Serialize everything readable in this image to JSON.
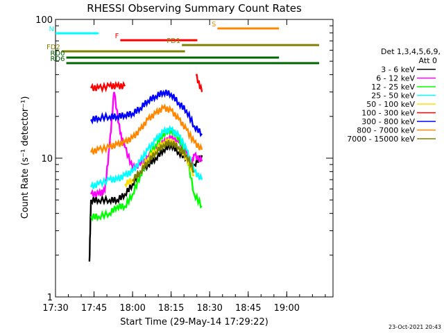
{
  "chart_data": {
    "type": "line",
    "title": "RHESSI Observing Summary Count Rates",
    "xlabel": "Start Time (29-May-14 17:29:22)",
    "ylabel": "Count Rate (s⁻¹ detector⁻¹)",
    "x_range_minutes": [
      17.5,
      19.3
    ],
    "x_ticks": [
      {
        "label": "17:30",
        "value": 17.5
      },
      {
        "label": "17:45",
        "value": 17.75
      },
      {
        "label": "18:00",
        "value": 18.0
      },
      {
        "label": "18:15",
        "value": 18.25
      },
      {
        "label": "18:30",
        "value": 18.5
      },
      {
        "label": "18:45",
        "value": 18.75
      },
      {
        "label": "19:00",
        "value": 19.0
      }
    ],
    "y_scale": "log",
    "ylim": [
      1,
      100
    ],
    "y_ticks": [
      {
        "label": "1",
        "value": 1
      },
      {
        "label": "10",
        "value": 10
      },
      {
        "label": "100",
        "value": 100
      }
    ],
    "legend_title": "Det 1,3,4,5,6,9,",
    "legend_subtitle": "Att 0",
    "legend_position": "right",
    "timestamp": "23-Oct-2021 20:43",
    "series": [
      {
        "name": "3 - 6 keV",
        "color": "#000000",
        "x": [
          17.72,
          17.73,
          17.78,
          17.85,
          17.9,
          17.95,
          18.0,
          18.05,
          18.1,
          18.15,
          18.2,
          18.25,
          18.3,
          18.35,
          18.4,
          18.45
        ],
        "y": [
          1.8,
          5.0,
          5.0,
          5.0,
          5.0,
          5.5,
          6.5,
          8.0,
          9.0,
          10.0,
          11.5,
          12.5,
          11.0,
          10.0,
          9.0,
          10.5
        ]
      },
      {
        "name": "6 - 12 keV",
        "color": "#ff00ff",
        "x": [
          17.73,
          17.78,
          17.82,
          17.85,
          17.88,
          17.92,
          17.95,
          18.0,
          18.05,
          18.1,
          18.15,
          18.2,
          18.25,
          18.3,
          18.35,
          18.38,
          18.4,
          18.45
        ],
        "y": [
          5.5,
          5.5,
          5.8,
          12.0,
          30.0,
          15.0,
          12.0,
          8.5,
          9.0,
          10.0,
          11.5,
          13.0,
          14.0,
          13.0,
          11.0,
          9.0,
          10.5,
          9.5
        ]
      },
      {
        "name": "12 - 25 keV",
        "color": "#00ff00",
        "x": [
          17.73,
          17.78,
          17.85,
          17.9,
          17.95,
          18.0,
          18.05,
          18.1,
          18.15,
          18.2,
          18.25,
          18.3,
          18.35,
          18.4,
          18.45
        ],
        "y": [
          3.8,
          3.8,
          4.0,
          4.5,
          4.5,
          5.5,
          7.5,
          10.0,
          12.5,
          15.0,
          16.0,
          14.0,
          10.5,
          5.5,
          4.5
        ]
      },
      {
        "name": "25 - 50 keV",
        "color": "#00ffff",
        "x": [
          17.73,
          17.78,
          17.85,
          17.9,
          17.95,
          18.0,
          18.05,
          18.1,
          18.15,
          18.2,
          18.25,
          18.3,
          18.35,
          18.4,
          18.45
        ],
        "y": [
          6.2,
          6.5,
          7.0,
          7.0,
          7.5,
          8.0,
          9.5,
          11.5,
          13.5,
          15.5,
          16.0,
          14.5,
          11.5,
          8.0,
          7.0
        ]
      },
      {
        "name": "50 - 100 keV",
        "color": "#ffdd00",
        "x": [
          17.95,
          18.0,
          18.05,
          18.1,
          18.15,
          18.2,
          18.25,
          18.3,
          18.35,
          18.4
        ],
        "y": [
          6.5,
          7.0,
          8.0,
          10.0,
          11.5,
          13.0,
          13.5,
          12.0,
          10.0,
          7.5
        ]
      },
      {
        "name": "100 - 300 keV",
        "color": "#ff0000",
        "x": [
          17.73,
          17.78,
          17.85,
          17.9,
          17.95,
          17.96,
          18.4,
          18.41,
          18.45
        ],
        "y": [
          32.0,
          32.0,
          33.0,
          33.0,
          33.0,
          null,
          null,
          40.0,
          30.0
        ]
      },
      {
        "name": "300 - 800 keV",
        "color": "#0000ff",
        "x": [
          17.73,
          17.78,
          17.85,
          17.9,
          17.95,
          18.0,
          18.05,
          18.1,
          18.15,
          18.2,
          18.25,
          18.3,
          18.35,
          18.4,
          18.45
        ],
        "y": [
          19.0,
          19.5,
          20.0,
          20.0,
          20.5,
          21.0,
          23.0,
          26.0,
          28.0,
          30.0,
          29.0,
          25.0,
          22.0,
          17.0,
          15.0
        ]
      },
      {
        "name": "800 - 7000 keV",
        "color": "#ff8800",
        "x": [
          17.73,
          17.78,
          17.85,
          17.9,
          17.95,
          18.0,
          18.05,
          18.1,
          18.15,
          18.2,
          18.25,
          18.3,
          18.35,
          18.4,
          18.45
        ],
        "y": [
          11.0,
          11.5,
          12.0,
          12.5,
          13.0,
          14.0,
          16.0,
          19.0,
          21.0,
          23.0,
          22.0,
          19.0,
          16.0,
          13.0,
          11.5
        ]
      },
      {
        "name": "7000 - 15000 keV",
        "color": "#808000",
        "x": [
          18.0,
          18.05,
          18.1,
          18.15,
          18.2,
          18.25,
          18.3,
          18.35,
          18.4
        ],
        "y": [
          7.0,
          8.0,
          9.5,
          11.0,
          12.5,
          13.0,
          12.0,
          10.5,
          8.0
        ]
      }
    ],
    "annotations": [
      {
        "label": "N",
        "color": "#00ffff",
        "x": [
          17.5,
          17.78
        ]
      },
      {
        "label": "F",
        "color": "#ff0000",
        "x": [
          17.92,
          18.42
        ]
      },
      {
        "label": "S",
        "color": "#ff8800",
        "x": [
          18.55,
          18.95
        ]
      },
      {
        "label": "FD1",
        "color": "#808000",
        "x": [
          18.32,
          19.28
        ]
      },
      {
        "label": "FD2",
        "color": "#808000",
        "x": [
          17.54,
          18.34
        ]
      },
      {
        "label": "RD0",
        "color": "#006600",
        "x": [
          17.57,
          18.95
        ]
      },
      {
        "label": "RD6",
        "color": "#006600",
        "x": [
          17.57,
          19.28
        ]
      }
    ]
  }
}
